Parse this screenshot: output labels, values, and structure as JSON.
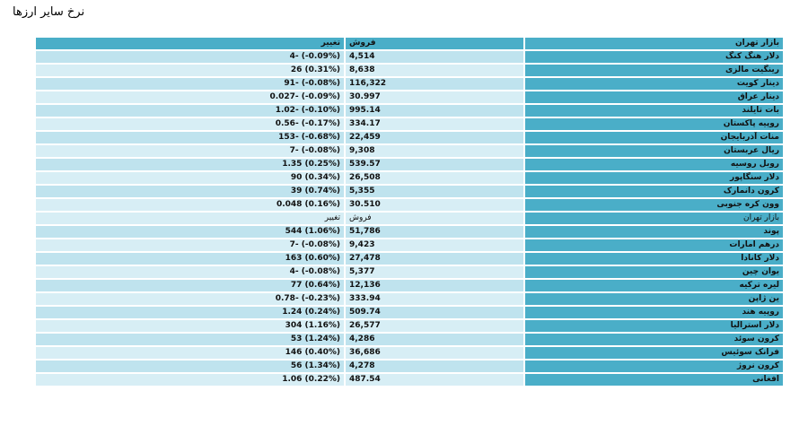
{
  "page_title": "نرخ سایر ارزها",
  "header": {
    "market": "بازار تهران",
    "sell": "فروش",
    "change": "تغییر"
  },
  "section1": [
    {
      "name": "دلار هنگ کنگ",
      "sell": "4,514",
      "change": "4- (-0.09%)"
    },
    {
      "name": "رینگیت مالزی",
      "sell": "8,638",
      "change": "26 (0.31%)"
    },
    {
      "name": "دینار کویت",
      "sell": "116,322",
      "change": "91- (-0.08%)"
    },
    {
      "name": "دینار عراق",
      "sell": "30.997",
      "change": "0.027- (-0.09%)"
    },
    {
      "name": "بات تایلند",
      "sell": "995.14",
      "change": "1.02- (-0.10%)"
    },
    {
      "name": "روپیه پاکستان",
      "sell": "334.17",
      "change": "0.56- (-0.17%)"
    },
    {
      "name": "منات آذربایجان",
      "sell": "22,459",
      "change": "153- (-0.68%)"
    },
    {
      "name": "ریال عربستان",
      "sell": "9,308",
      "change": "7- (-0.08%)"
    },
    {
      "name": "روبل روسیه",
      "sell": "539.57",
      "change": "1.35 (0.25%)"
    },
    {
      "name": "دلار سنگاپور",
      "sell": "26,508",
      "change": "90 (0.34%)"
    },
    {
      "name": "کرون دانمارک",
      "sell": "5,355",
      "change": "39 (0.74%)"
    },
    {
      "name": "وون کره جنوبی",
      "sell": "30.510",
      "change": "0.048 (0.16%)"
    }
  ],
  "subheader": {
    "market": "بازار تهران",
    "sell": "فروش",
    "change": "تغییر"
  },
  "section2": [
    {
      "name": "پوند",
      "sell": "51,786",
      "change": "544 (1.06%)"
    },
    {
      "name": "درهم امارات",
      "sell": "9,423",
      "change": "7- (-0.08%)"
    },
    {
      "name": "دلار کانادا",
      "sell": "27,478",
      "change": "163 (0.60%)"
    },
    {
      "name": "یوان چین",
      "sell": "5,377",
      "change": "4- (-0.08%)"
    },
    {
      "name": "لیره ترکیه",
      "sell": "12,136",
      "change": "77 (0.64%)"
    },
    {
      "name": "ین ژاپن",
      "sell": "333.94",
      "change": "0.78- (-0.23%)"
    },
    {
      "name": "روپیه هند",
      "sell": "509.74",
      "change": "1.24 (0.24%)"
    },
    {
      "name": "دلار استرالیا",
      "sell": "26,577",
      "change": "304 (1.16%)"
    },
    {
      "name": "کرون سوئد",
      "sell": "4,286",
      "change": "53 (1.24%)"
    },
    {
      "name": "فرانک سوئیس",
      "sell": "36,686",
      "change": "146 (0.40%)"
    },
    {
      "name": "کرون نروژ",
      "sell": "4,278",
      "change": "56 (1.34%)"
    },
    {
      "name": "افغانی",
      "sell": "487.54",
      "change": "1.06 (0.22%)"
    }
  ]
}
